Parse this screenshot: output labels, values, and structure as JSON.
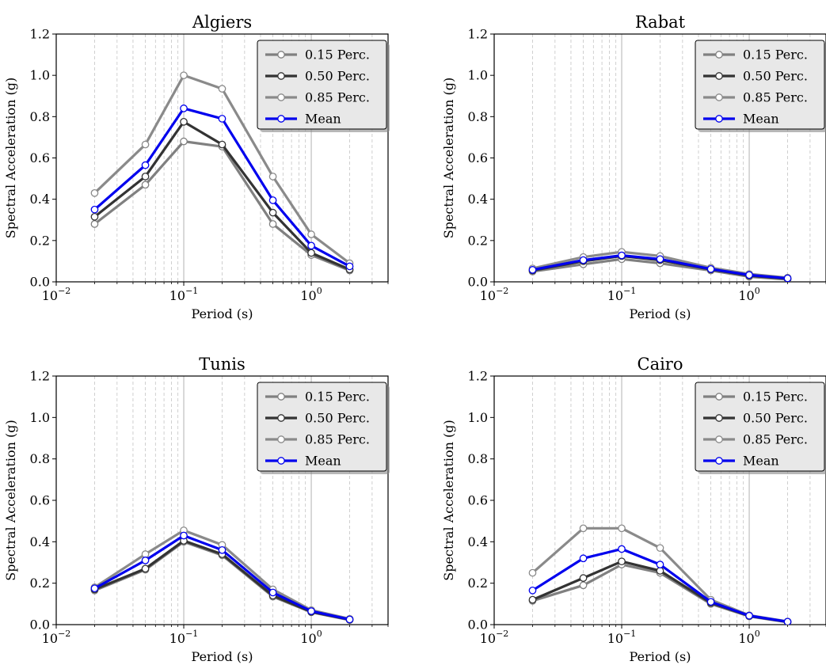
{
  "figure": {
    "colors": {
      "p15": "#808080",
      "p50": "#333333",
      "p85": "#8a8a8a",
      "mean": "#0000ee",
      "legend_bg": "#e8e8e8"
    }
  },
  "chart_data": [
    {
      "type": "line",
      "title": "Algiers",
      "xlabel": "Period (s)",
      "ylabel": "Spectral Acceleration (g)",
      "x_scale": "log",
      "xlim": [
        0.01,
        4
      ],
      "ylim": [
        0,
        1.2
      ],
      "x_ticks": [
        {
          "value": 0.01,
          "base": "10",
          "exp": "−2"
        },
        {
          "value": 0.1,
          "base": "10",
          "exp": "−1"
        },
        {
          "value": 1,
          "base": "10",
          "exp": "0"
        }
      ],
      "y_ticks": [
        "0.0",
        "0.2",
        "0.4",
        "0.6",
        "0.8",
        "1.0",
        "1.2"
      ],
      "legend_position": "top-right",
      "grid": true,
      "x": [
        0.02,
        0.05,
        0.1,
        0.2,
        0.5,
        1,
        2
      ],
      "series": [
        {
          "name": "0.15 Perc.",
          "key": "p15",
          "values": [
            0.28,
            0.47,
            0.68,
            0.655,
            0.28,
            0.13,
            0.055
          ]
        },
        {
          "name": "0.50 Perc.",
          "key": "p50",
          "values": [
            0.315,
            0.51,
            0.775,
            0.665,
            0.335,
            0.14,
            0.06
          ]
        },
        {
          "name": "0.85 Perc.",
          "key": "p85",
          "values": [
            0.43,
            0.665,
            1.0,
            0.935,
            0.51,
            0.23,
            0.09
          ]
        },
        {
          "name": "Mean",
          "key": "mean",
          "values": [
            0.35,
            0.565,
            0.84,
            0.79,
            0.395,
            0.175,
            0.075
          ]
        }
      ]
    },
    {
      "type": "line",
      "title": "Rabat",
      "xlabel": "Period (s)",
      "ylabel": "Spectral Acceleration (g)",
      "x_scale": "log",
      "xlim": [
        0.01,
        4
      ],
      "ylim": [
        0,
        1.2
      ],
      "x_ticks": [
        {
          "value": 0.01,
          "base": "10",
          "exp": "−2"
        },
        {
          "value": 0.1,
          "base": "10",
          "exp": "−1"
        },
        {
          "value": 1,
          "base": "10",
          "exp": "0"
        }
      ],
      "y_ticks": [
        "0.0",
        "0.2",
        "0.4",
        "0.6",
        "0.8",
        "1.0",
        "1.2"
      ],
      "legend_position": "top-right",
      "grid": true,
      "x": [
        0.02,
        0.05,
        0.1,
        0.2,
        0.5,
        1,
        2
      ],
      "series": [
        {
          "name": "0.15 Perc.",
          "key": "p15",
          "values": [
            0.05,
            0.085,
            0.11,
            0.09,
            0.055,
            0.025,
            0.012
          ]
        },
        {
          "name": "0.50 Perc.",
          "key": "p50",
          "values": [
            0.055,
            0.1,
            0.125,
            0.105,
            0.06,
            0.03,
            0.015
          ]
        },
        {
          "name": "0.85 Perc.",
          "key": "p85",
          "values": [
            0.065,
            0.12,
            0.145,
            0.125,
            0.068,
            0.038,
            0.02
          ]
        },
        {
          "name": "Mean",
          "key": "mean",
          "values": [
            0.058,
            0.105,
            0.128,
            0.11,
            0.062,
            0.033,
            0.017
          ]
        }
      ]
    },
    {
      "type": "line",
      "title": "Tunis",
      "xlabel": "Period (s)",
      "ylabel": "Spectral Acceleration (g)",
      "x_scale": "log",
      "xlim": [
        0.01,
        4
      ],
      "ylim": [
        0,
        1.2
      ],
      "x_ticks": [
        {
          "value": 0.01,
          "base": "10",
          "exp": "−2"
        },
        {
          "value": 0.1,
          "base": "10",
          "exp": "−1"
        },
        {
          "value": 1,
          "base": "10",
          "exp": "0"
        }
      ],
      "y_ticks": [
        "0.0",
        "0.2",
        "0.4",
        "0.6",
        "0.8",
        "1.0",
        "1.2"
      ],
      "legend_position": "top-right",
      "grid": true,
      "x": [
        0.02,
        0.05,
        0.1,
        0.2,
        0.5,
        1,
        2
      ],
      "series": [
        {
          "name": "0.15 Perc.",
          "key": "p15",
          "values": [
            0.165,
            0.265,
            0.4,
            0.335,
            0.135,
            0.06,
            0.022
          ]
        },
        {
          "name": "0.50 Perc.",
          "key": "p50",
          "values": [
            0.17,
            0.27,
            0.405,
            0.34,
            0.14,
            0.062,
            0.024
          ]
        },
        {
          "name": "0.85 Perc.",
          "key": "p85",
          "values": [
            0.18,
            0.34,
            0.455,
            0.385,
            0.17,
            0.07,
            0.028
          ]
        },
        {
          "name": "Mean",
          "key": "mean",
          "values": [
            0.175,
            0.31,
            0.43,
            0.36,
            0.155,
            0.065,
            0.025
          ]
        }
      ]
    },
    {
      "type": "line",
      "title": "Cairo",
      "xlabel": "Period (s)",
      "ylabel": "Spectral Acceleration (g)",
      "x_scale": "log",
      "xlim": [
        0.01,
        4
      ],
      "ylim": [
        0,
        1.2
      ],
      "x_ticks": [
        {
          "value": 0.01,
          "base": "10",
          "exp": "−2"
        },
        {
          "value": 0.1,
          "base": "10",
          "exp": "−1"
        },
        {
          "value": 1,
          "base": "10",
          "exp": "0"
        }
      ],
      "y_ticks": [
        "0.0",
        "0.2",
        "0.4",
        "0.6",
        "0.8",
        "1.0",
        "1.2"
      ],
      "legend_position": "top-right",
      "grid": true,
      "x": [
        0.02,
        0.05,
        0.1,
        0.2,
        0.5,
        1,
        2
      ],
      "series": [
        {
          "name": "0.15 Perc.",
          "key": "p15",
          "values": [
            0.115,
            0.19,
            0.29,
            0.25,
            0.1,
            0.04,
            0.012
          ]
        },
        {
          "name": "0.50 Perc.",
          "key": "p50",
          "values": [
            0.12,
            0.225,
            0.305,
            0.26,
            0.105,
            0.042,
            0.013
          ]
        },
        {
          "name": "0.85 Perc.",
          "key": "p85",
          "values": [
            0.25,
            0.465,
            0.465,
            0.37,
            0.12,
            0.045,
            0.015
          ]
        },
        {
          "name": "Mean",
          "key": "mean",
          "values": [
            0.165,
            0.32,
            0.365,
            0.29,
            0.11,
            0.043,
            0.014
          ]
        }
      ]
    }
  ]
}
